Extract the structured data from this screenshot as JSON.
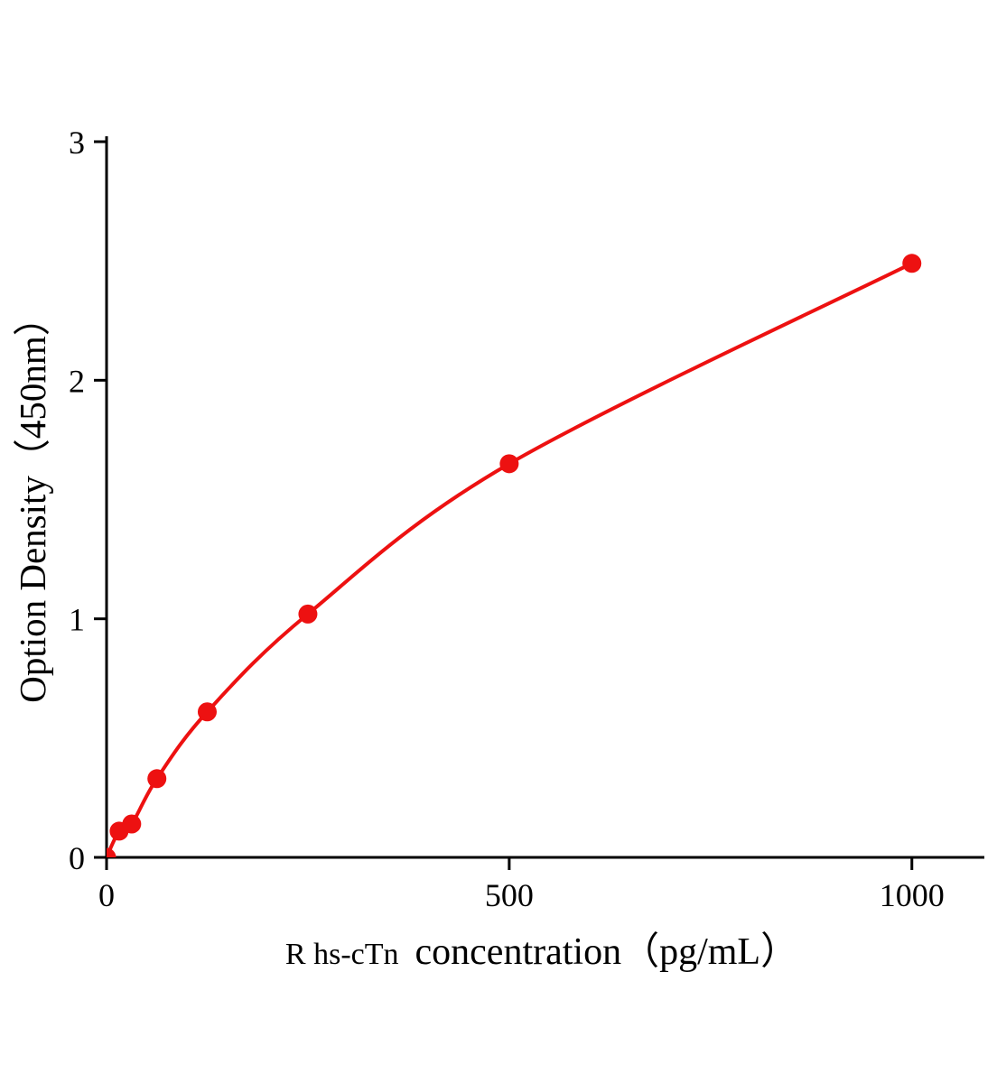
{
  "figure": {
    "background": "#ffffff"
  },
  "chart_data": {
    "type": "line",
    "marker": "circle",
    "x": [
      0,
      15.6,
      31.2,
      62.5,
      125,
      250,
      500,
      1000
    ],
    "y": [
      0,
      0.11,
      0.14,
      0.33,
      0.61,
      1.02,
      1.65,
      2.49
    ],
    "title": "",
    "xlabel": "R hs-cTn concentration（pg/mL）",
    "xlabel_prefix": "R hs-cTn",
    "xlabel_main": "concentration（pg/mL）",
    "ylabel": "Option Density（450nm）",
    "x_ticks": [
      0,
      500,
      1000
    ],
    "y_ticks": [
      0,
      1,
      2,
      3
    ],
    "xlim": [
      0,
      1090
    ],
    "ylim": [
      0,
      3
    ],
    "grid": false,
    "legend": "none",
    "curve_color": "#ed1111",
    "axis_color": "#000000"
  }
}
